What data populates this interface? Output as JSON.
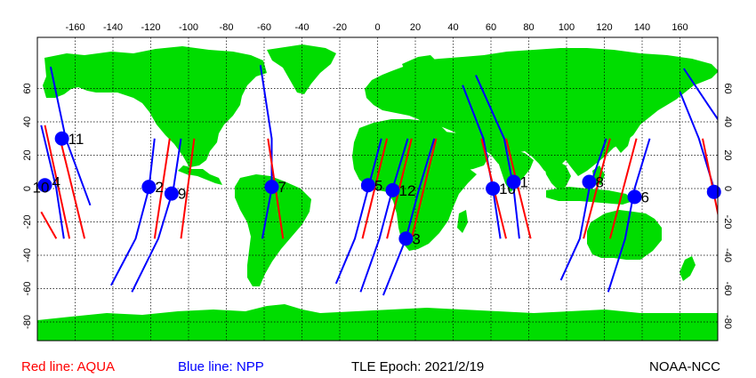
{
  "legend": {
    "aqua": "Red line: AQUA",
    "npp": "Blue line: NPP"
  },
  "epoch": "TLE Epoch: 2021/2/19",
  "credit": "NOAA-NCC",
  "axes": {
    "lon_ticks": [
      -160,
      -140,
      -120,
      -100,
      -80,
      -60,
      -40,
      -20,
      0,
      20,
      40,
      60,
      80,
      100,
      120,
      140,
      160
    ],
    "lat_ticks": [
      60,
      40,
      20,
      0,
      -20,
      -40,
      -60,
      -80
    ]
  },
  "colors": {
    "land": "#00dd00",
    "aqua_track": "#ff0000",
    "npp_track": "#0000ff",
    "marker": "#0000ff",
    "grid": "#000000"
  },
  "markers": [
    {
      "label": "11",
      "lon": -167,
      "lat": 30
    },
    {
      "label": "10",
      "lon": -176,
      "lat": 2
    },
    {
      "label": "4",
      "lon": -176,
      "lat": 2
    },
    {
      "label": "2",
      "lon": -121,
      "lat": 1
    },
    {
      "label": "9",
      "lon": -109,
      "lat": -3
    },
    {
      "label": "7",
      "lon": -56,
      "lat": 1
    },
    {
      "label": "5",
      "lon": -5,
      "lat": 2
    },
    {
      "label": "12",
      "lon": 8,
      "lat": -1
    },
    {
      "label": "3",
      "lon": 15,
      "lat": -30
    },
    {
      "label": "10",
      "lon": 61,
      "lat": 0
    },
    {
      "label": "1",
      "lon": 72,
      "lat": 4
    },
    {
      "label": "8",
      "lon": 112,
      "lat": 4
    },
    {
      "label": "6",
      "lon": 136,
      "lat": -5
    },
    {
      "label": "",
      "lon": 178,
      "lat": -2
    }
  ],
  "aqua_tracks": [
    [
      [
        -178,
        -14
      ],
      [
        -170,
        -30
      ]
    ],
    [
      [
        -176,
        38
      ],
      [
        -163,
        -30
      ]
    ],
    [
      [
        -168,
        30
      ],
      [
        -155,
        -30
      ]
    ],
    [
      [
        -110,
        30
      ],
      [
        -118,
        -30
      ]
    ],
    [
      [
        -97,
        30
      ],
      [
        -104,
        -30
      ]
    ],
    [
      [
        -58,
        30
      ],
      [
        -50,
        -30
      ]
    ],
    [
      [
        5,
        30
      ],
      [
        -8,
        -30
      ]
    ],
    [
      [
        18,
        30
      ],
      [
        5,
        -30
      ]
    ],
    [
      [
        31,
        30
      ],
      [
        18,
        -30
      ]
    ],
    [
      [
        55,
        30
      ],
      [
        68,
        -30
      ]
    ],
    [
      [
        68,
        30
      ],
      [
        81,
        -30
      ]
    ],
    [
      [
        123,
        30
      ],
      [
        109,
        -30
      ]
    ],
    [
      [
        137,
        30
      ],
      [
        123,
        -30
      ]
    ],
    [
      [
        172,
        30
      ],
      [
        181,
        -20
      ]
    ]
  ],
  "npp_tracks": [
    [
      [
        -178,
        38
      ],
      [
        -170,
        0
      ],
      [
        -166,
        -30
      ]
    ],
    [
      [
        -173,
        73
      ],
      [
        -165,
        30
      ],
      [
        -152,
        -10
      ]
    ],
    [
      [
        -118,
        30
      ],
      [
        -121,
        0
      ],
      [
        -128,
        -30
      ],
      [
        -141,
        -58
      ]
    ],
    [
      [
        -104,
        30
      ],
      [
        -108,
        0
      ],
      [
        -116,
        -30
      ],
      [
        -130,
        -62
      ]
    ],
    [
      [
        -62,
        74
      ],
      [
        -56,
        30
      ],
      [
        -56,
        0
      ],
      [
        -61,
        -30
      ]
    ],
    [
      [
        2,
        30
      ],
      [
        -5,
        0
      ],
      [
        -12,
        -30
      ],
      [
        -22,
        -57
      ]
    ],
    [
      [
        16,
        30
      ],
      [
        8,
        0
      ],
      [
        1,
        -30
      ],
      [
        -9,
        -62
      ]
    ],
    [
      [
        30,
        30
      ],
      [
        22,
        0
      ],
      [
        15,
        -30
      ],
      [
        3,
        -64
      ]
    ],
    [
      [
        45,
        62
      ],
      [
        56,
        30
      ],
      [
        61,
        0
      ],
      [
        65,
        -30
      ]
    ],
    [
      [
        52,
        68
      ],
      [
        67,
        30
      ],
      [
        72,
        0
      ],
      [
        75,
        -30
      ]
    ],
    [
      [
        121,
        30
      ],
      [
        112,
        0
      ],
      [
        107,
        -30
      ],
      [
        97,
        -55
      ]
    ],
    [
      [
        144,
        30
      ],
      [
        136,
        0
      ],
      [
        131,
        -30
      ],
      [
        122,
        -62
      ]
    ],
    [
      [
        160,
        58
      ],
      [
        170,
        30
      ],
      [
        178,
        0
      ]
    ],
    [
      [
        162,
        72
      ],
      [
        175,
        50
      ],
      [
        181,
        40
      ]
    ]
  ]
}
